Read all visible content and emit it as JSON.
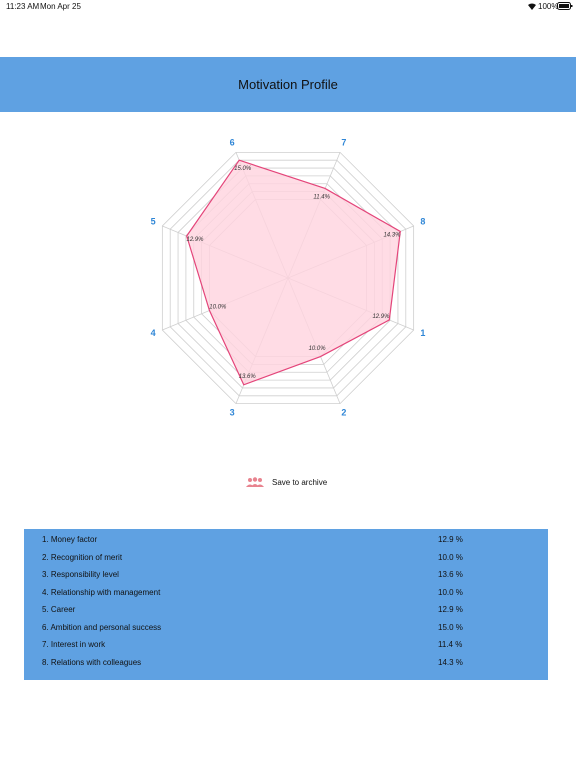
{
  "status_bar": {
    "time": "11:23 AM",
    "date": "Mon Apr 25",
    "battery": "100%"
  },
  "header": {
    "title": "Motivation Profile"
  },
  "chart_data": {
    "type": "radar",
    "categories": [
      "1",
      "2",
      "3",
      "4",
      "5",
      "6",
      "7",
      "8"
    ],
    "values": [
      12.9,
      10.0,
      13.6,
      10.0,
      12.9,
      15.0,
      11.4,
      14.3
    ],
    "value_labels": [
      "12.9%",
      "10.0%",
      "13.6%",
      "10.0%",
      "12.9%",
      "15.0%",
      "11.4%",
      "14.3%"
    ],
    "color": "#e4457a",
    "fill": "#ffd3df",
    "ylim": [
      0,
      16
    ],
    "yticks": [
      10,
      11,
      12,
      13,
      14,
      15,
      16
    ],
    "grid": true
  },
  "save_button": {
    "label": "Save to archive"
  },
  "table": {
    "rows": [
      [
        "1. Money factor",
        "12.9 %"
      ],
      [
        "2. Recognition of merit",
        "10.0 %"
      ],
      [
        "3. Responsibility level",
        "13.6 %"
      ],
      [
        "4. Relationship with management",
        "10.0 %"
      ],
      [
        "5. Career",
        "12.9 %"
      ],
      [
        "6. Ambition and personal success",
        "15.0 %"
      ],
      [
        "7. Interest in work",
        "11.4 %"
      ],
      [
        "8. Relations with colleagues",
        "14.3 %"
      ]
    ]
  }
}
